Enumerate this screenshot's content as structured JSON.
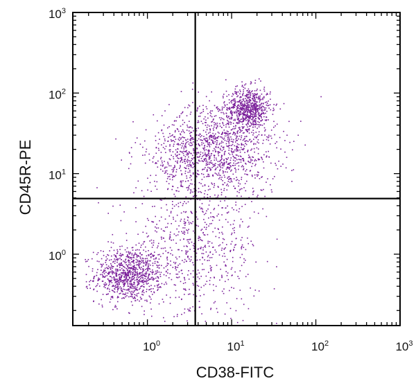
{
  "chart_data": {
    "type": "scatter",
    "subtype": "flow-cytometry quadrant dot plot",
    "xlabel": "CD38-FITC",
    "ylabel": "CD45R-PE",
    "xscale": "log",
    "yscale": "log",
    "xlim": [
      0.13,
      1000
    ],
    "ylim": [
      0.13,
      1000
    ],
    "x_ticks": [
      {
        "value": 1,
        "base": "10",
        "exp": "0"
      },
      {
        "value": 10,
        "base": "10",
        "exp": "1"
      },
      {
        "value": 100,
        "base": "10",
        "exp": "2"
      },
      {
        "value": 1000,
        "base": "10",
        "exp": "3"
      }
    ],
    "y_ticks": [
      {
        "value": 1,
        "base": "10",
        "exp": "0"
      },
      {
        "value": 10,
        "base": "10",
        "exp": "1"
      },
      {
        "value": 100,
        "base": "10",
        "exp": "2"
      },
      {
        "value": 1000,
        "base": "10",
        "exp": "3"
      }
    ],
    "gates": {
      "x": 3.7,
      "y": 4.9
    },
    "grid": false,
    "legend": "none",
    "point_color": "#7a1f9a",
    "line_color": "#000000",
    "populations": [
      {
        "center": [
          0.6,
          0.55
        ],
        "spread_log10": [
          0.2,
          0.17
        ],
        "count": 900
      },
      {
        "center": [
          16,
          65
        ],
        "spread_log10": [
          0.13,
          0.13
        ],
        "count": 650
      },
      {
        "center": [
          8,
          20
        ],
        "spread_log10": [
          0.32,
          0.3
        ],
        "count": 1000
      },
      {
        "center": [
          2.5,
          18
        ],
        "spread_log10": [
          0.28,
          0.22
        ],
        "count": 300
      },
      {
        "center": [
          3.5,
          1.2
        ],
        "spread_log10": [
          0.38,
          0.45
        ],
        "count": 700
      }
    ]
  }
}
